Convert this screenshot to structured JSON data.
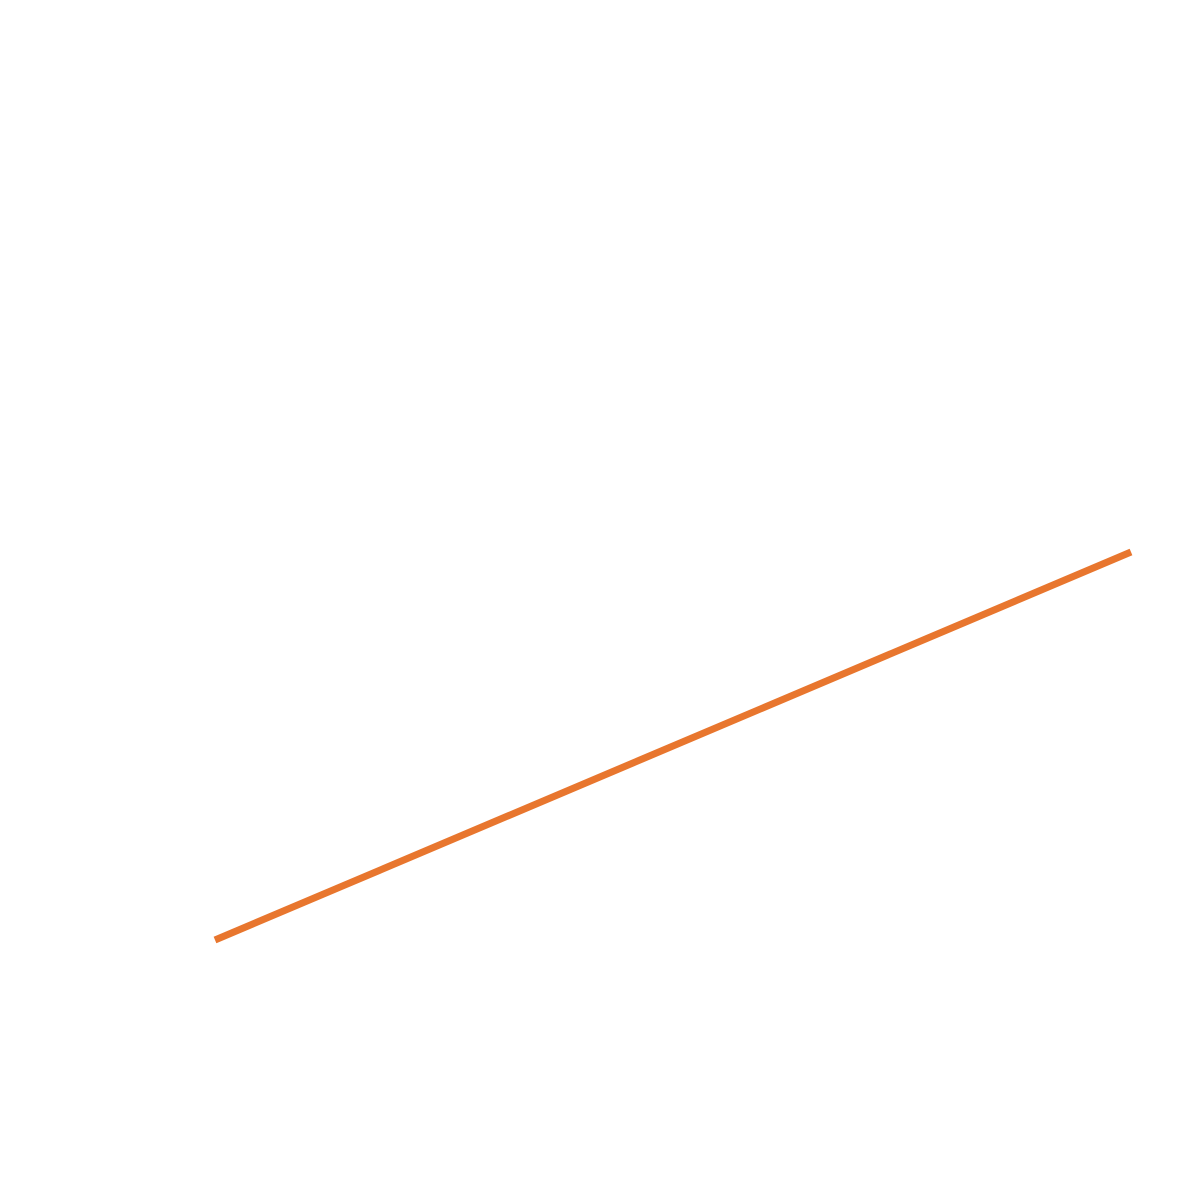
{
  "background_color": "#ffffff",
  "segment": {
    "stroke_color": "#e8762e"
  }
}
